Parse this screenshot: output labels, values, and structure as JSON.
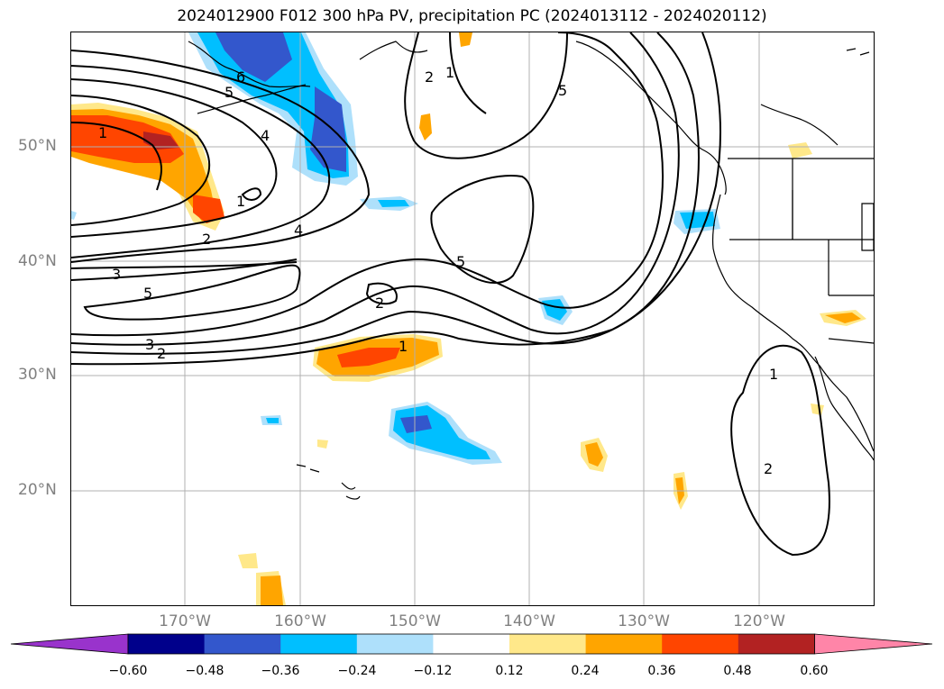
{
  "title": "2024012900 F012 300 hPa PV, precipitation PC (2024013112 - 2024020112)",
  "lat_labels": [
    "50°N",
    "40°N",
    "30°N",
    "20°N"
  ],
  "lon_labels": [
    "170°W",
    "160°W",
    "150°W",
    "140°W",
    "130°W",
    "120°W"
  ],
  "colorbar": {
    "ticks": [
      "−0.60",
      "−0.48",
      "−0.36",
      "−0.24",
      "−0.12",
      "0.12",
      "0.24",
      "0.36",
      "0.48",
      "0.60"
    ],
    "colors": [
      "#9933cc",
      "#00008b",
      "#3357cc",
      "#00bfff",
      "#aee0fb",
      "#ffffff",
      "#ffe88a",
      "#ffa500",
      "#ff4500",
      "#b22222",
      "#ff85a8"
    ]
  },
  "contour_labels": [
    "1",
    "2",
    "3",
    "4",
    "5",
    "6"
  ],
  "colors": {
    "contour": "#000000",
    "coast": "#000000",
    "grid": "#b0b0b0",
    "axis_label": "#808080"
  }
}
